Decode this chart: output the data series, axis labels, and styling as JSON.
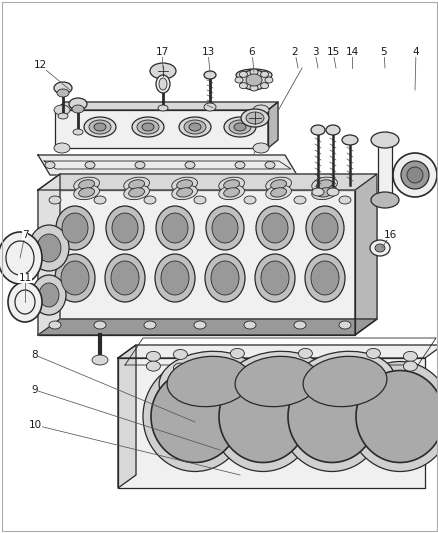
{
  "bg_color": "#ffffff",
  "line_color": "#2a2a2a",
  "label_color": "#1a1a1a",
  "fig_width": 4.39,
  "fig_height": 5.33,
  "dpi": 100,
  "font_size": 7.5,
  "leader_color": "#555555",
  "fill_light": "#f0f0f0",
  "fill_mid": "#d8d8d8",
  "fill_dark": "#b8b8b8",
  "fill_darker": "#999999"
}
